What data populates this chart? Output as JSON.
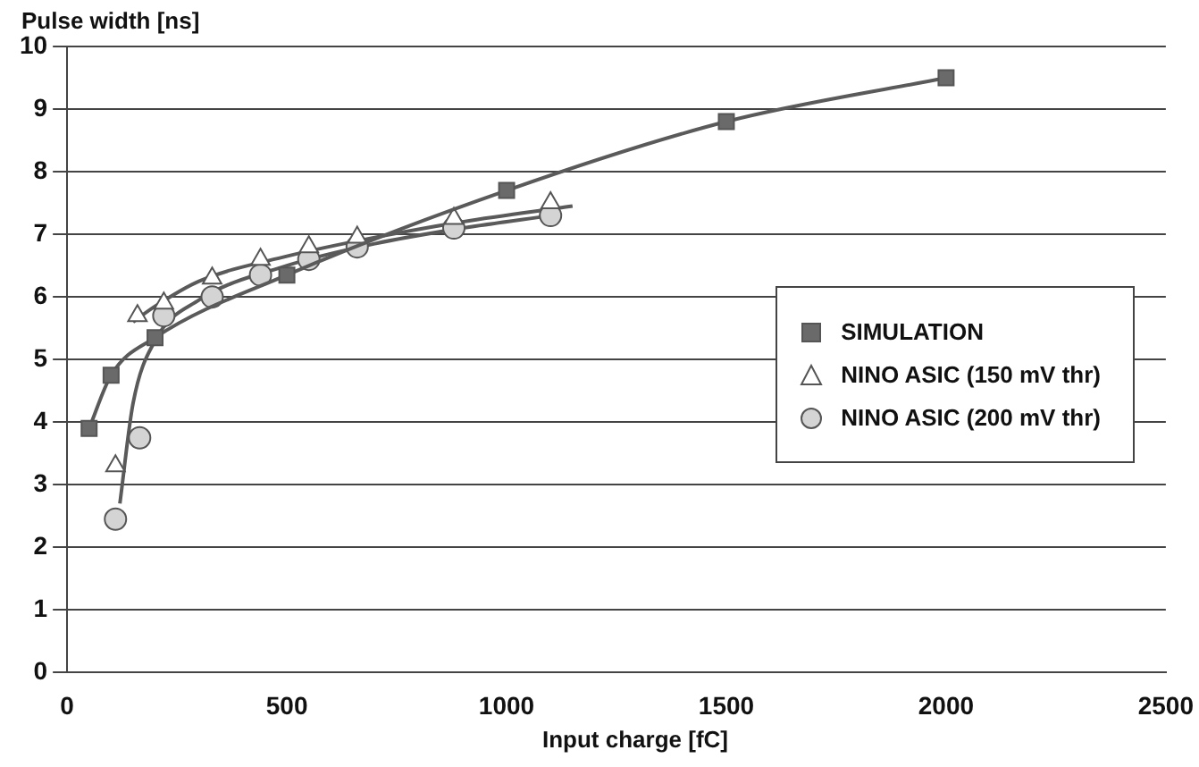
{
  "chart_data": {
    "type": "scatter",
    "ylabel": "Pulse width [ns]",
    "xlabel": "Input charge [fC]",
    "xlim": [
      0,
      2500
    ],
    "xticks": [
      0,
      500,
      1000,
      1500,
      2000,
      2500
    ],
    "ylim": [
      0,
      10
    ],
    "yticks": [
      0,
      1,
      2,
      3,
      4,
      5,
      6,
      7,
      8,
      9,
      10
    ],
    "grid": "y",
    "legend": "right",
    "series": [
      {
        "name": "SIMULATION",
        "type": "line",
        "marker": "square",
        "color": "#6a6a6a",
        "x": [
          50,
          100,
          200,
          500,
          1000,
          1500,
          2000
        ],
        "values": [
          3.9,
          4.75,
          5.35,
          6.35,
          7.7,
          8.8,
          9.5
        ]
      },
      {
        "name": "NINO ASIC (150 mV thr)",
        "type": "scatter",
        "marker": "triangle",
        "color": "#ffffff",
        "x": [
          110,
          160,
          220,
          330,
          440,
          550,
          660,
          880,
          1100
        ],
        "values": [
          3.3,
          5.7,
          5.9,
          6.3,
          6.6,
          6.8,
          6.95,
          7.25,
          7.5
        ]
      },
      {
        "name": "NINO ASIC (200 mV thr)",
        "type": "scatter",
        "marker": "circle",
        "color": "#d4d4d4",
        "x": [
          110,
          165,
          220,
          330,
          440,
          550,
          660,
          880,
          1100
        ],
        "values": [
          2.45,
          3.75,
          5.7,
          6.0,
          6.35,
          6.6,
          6.8,
          7.1,
          7.3
        ]
      },
      {
        "type": "line",
        "marker": "none",
        "color": "#5a5a5a",
        "x": [
          150,
          200,
          300,
          500,
          700,
          900,
          1150
        ],
        "values": [
          5.6,
          5.85,
          6.25,
          6.65,
          6.95,
          7.2,
          7.45
        ]
      },
      {
        "type": "line",
        "marker": "none",
        "color": "#5a5a5a",
        "x": [
          120,
          150,
          200,
          300,
          500,
          700,
          900,
          1100
        ],
        "values": [
          2.7,
          4.3,
          5.3,
          5.95,
          6.5,
          6.85,
          7.1,
          7.3
        ]
      }
    ]
  }
}
